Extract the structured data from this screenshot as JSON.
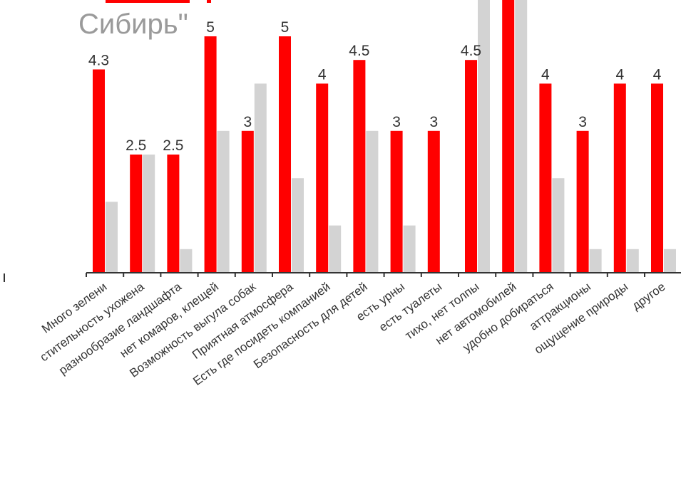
{
  "subtitle": "Сибирь\"",
  "colors": {
    "primary": "#ff0000",
    "secondary": "#d3d3d3",
    "axis": "#333333",
    "label": "#333333"
  },
  "chart_data": {
    "type": "bar",
    "categories": [
      "Много зелени",
      "стительность ухожена",
      "разнообразие ландшафта",
      "нет комаров, клещей",
      "Возможность выгула собак",
      "Приятная атмосфера",
      "Есть где посидеть компанией",
      "Безопасность для детей",
      "есть урны",
      "есть туалеты",
      "тихо, нет толпы",
      "нет автомобилей",
      "удобно добираться",
      "аттракционы",
      "ощущение природы",
      "другое"
    ],
    "series": [
      {
        "values": [
          4.3,
          2.5,
          2.5,
          5,
          3,
          5,
          4,
          4.5,
          3,
          3,
          4.5,
          6,
          4,
          3,
          4,
          4
        ],
        "labels": [
          "4.3",
          "2.5",
          "2.5",
          "5",
          "3",
          "5",
          "4",
          "4.5",
          "3",
          "3",
          "4.5",
          "",
          "4",
          "3",
          "4",
          "4"
        ]
      },
      {
        "values": [
          1.5,
          2.5,
          0.5,
          3,
          4,
          2,
          1,
          3,
          1,
          0,
          6,
          6,
          2,
          0.5,
          0.5,
          0.5
        ]
      }
    ],
    "ylim": [
      0,
      5.8
    ],
    "grid": false,
    "xlabel": "",
    "ylabel": ""
  }
}
